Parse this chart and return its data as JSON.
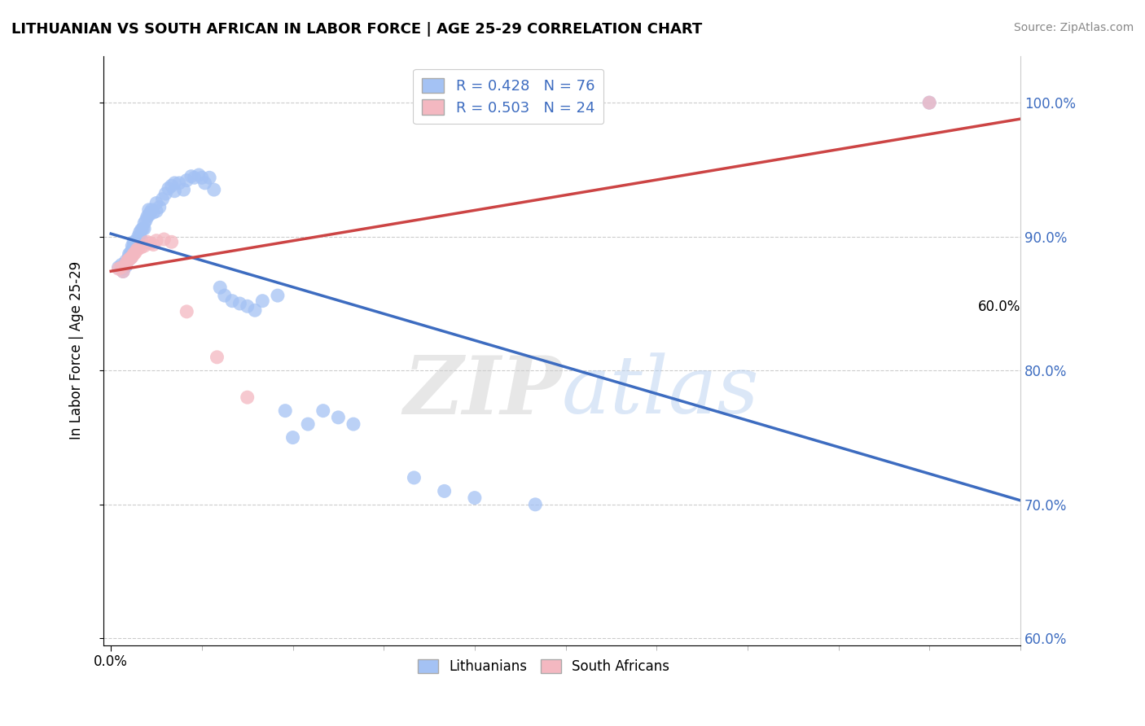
{
  "title": "LITHUANIAN VS SOUTH AFRICAN IN LABOR FORCE | AGE 25-29 CORRELATION CHART",
  "source_text": "Source: ZipAtlas.com",
  "ylabel": "In Labor Force | Age 25-29",
  "xlim": [
    -0.005,
    0.6
  ],
  "ylim": [
    0.595,
    1.035
  ],
  "yticks": [
    0.6,
    0.7,
    0.8,
    0.9,
    1.0
  ],
  "ytick_labels": [
    "60.0%",
    "70.0%",
    "80.0%",
    "90.0%",
    "100.0%"
  ],
  "xtick_left_label": "0.0%",
  "xtick_right_label": "60.0%",
  "blue_R": 0.428,
  "blue_N": 76,
  "pink_R": 0.503,
  "pink_N": 24,
  "blue_color": "#a4c2f4",
  "pink_color": "#f4b8c1",
  "blue_line_color": "#3d6cc0",
  "pink_line_color": "#cc4444",
  "legend_label_blue": "Lithuanians",
  "legend_label_pink": "South Africans",
  "watermark_zip": "ZIP",
  "watermark_atlas": "atlas",
  "watermark_zip_color": "#d0d0d0",
  "watermark_atlas_color": "#b8d0f0",
  "blue_scatter_x": [
    0.005,
    0.007,
    0.008,
    0.008,
    0.01,
    0.01,
    0.01,
    0.012,
    0.012,
    0.012,
    0.013,
    0.013,
    0.013,
    0.014,
    0.014,
    0.015,
    0.015,
    0.015,
    0.016,
    0.016,
    0.017,
    0.017,
    0.018,
    0.018,
    0.019,
    0.019,
    0.02,
    0.02,
    0.021,
    0.022,
    0.022,
    0.023,
    0.024,
    0.025,
    0.025,
    0.026,
    0.027,
    0.028,
    0.03,
    0.03,
    0.032,
    0.034,
    0.036,
    0.038,
    0.04,
    0.042,
    0.042,
    0.045,
    0.048,
    0.05,
    0.053,
    0.055,
    0.058,
    0.06,
    0.062,
    0.065,
    0.068,
    0.072,
    0.075,
    0.08,
    0.085,
    0.09,
    0.095,
    0.1,
    0.11,
    0.115,
    0.12,
    0.13,
    0.14,
    0.15,
    0.16,
    0.2,
    0.22,
    0.24,
    0.28,
    0.54
  ],
  "blue_scatter_y": [
    0.877,
    0.879,
    0.876,
    0.874,
    0.882,
    0.88,
    0.878,
    0.887,
    0.885,
    0.884,
    0.888,
    0.886,
    0.884,
    0.893,
    0.89,
    0.896,
    0.893,
    0.89,
    0.895,
    0.892,
    0.897,
    0.894,
    0.9,
    0.897,
    0.903,
    0.9,
    0.905,
    0.898,
    0.906,
    0.91,
    0.906,
    0.912,
    0.915,
    0.92,
    0.916,
    0.918,
    0.92,
    0.918,
    0.925,
    0.919,
    0.922,
    0.928,
    0.932,
    0.936,
    0.938,
    0.94,
    0.934,
    0.94,
    0.935,
    0.942,
    0.945,
    0.944,
    0.946,
    0.944,
    0.94,
    0.944,
    0.935,
    0.862,
    0.856,
    0.852,
    0.85,
    0.848,
    0.845,
    0.852,
    0.856,
    0.77,
    0.75,
    0.76,
    0.77,
    0.765,
    0.76,
    0.72,
    0.71,
    0.705,
    0.7,
    1.0
  ],
  "pink_scatter_x": [
    0.005,
    0.007,
    0.008,
    0.01,
    0.011,
    0.012,
    0.013,
    0.014,
    0.015,
    0.016,
    0.017,
    0.018,
    0.02,
    0.022,
    0.024,
    0.026,
    0.028,
    0.03,
    0.035,
    0.04,
    0.05,
    0.07,
    0.09,
    0.54
  ],
  "pink_scatter_y": [
    0.876,
    0.877,
    0.874,
    0.88,
    0.882,
    0.883,
    0.884,
    0.885,
    0.887,
    0.888,
    0.89,
    0.891,
    0.892,
    0.893,
    0.896,
    0.895,
    0.894,
    0.897,
    0.898,
    0.896,
    0.844,
    0.81,
    0.78,
    1.0
  ]
}
